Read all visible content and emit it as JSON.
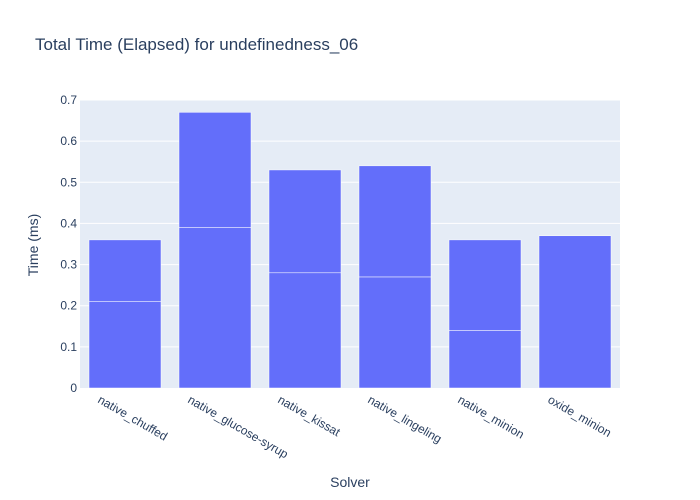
{
  "chart_data": {
    "type": "bar",
    "barmode": "stack",
    "title": "Total Time (Elapsed) for undefinedness_06",
    "xlabel": "Solver",
    "ylabel": "Time (ms)",
    "categories": [
      "native_chuffed",
      "native_glucose-syrup",
      "native_kissat",
      "native_lingeling",
      "native_minion",
      "oxide_minion"
    ],
    "series": [
      {
        "values": [
          0.21,
          0.39,
          0.28,
          0.27,
          0.14,
          0.37
        ]
      },
      {
        "values": [
          0.15,
          0.28,
          0.25,
          0.27,
          0.22,
          0
        ]
      }
    ],
    "ylim": [
      0,
      0.7
    ],
    "yticks": [
      "0",
      "0.1",
      "0.2",
      "0.3",
      "0.4",
      "0.5",
      "0.6",
      "0.7"
    ],
    "grid": true,
    "legend": "none",
    "colors": {
      "bar": "#636efa",
      "plot_bg": "#e5ecf6",
      "grid": "#ffffff",
      "text": "#2a3f5f"
    }
  }
}
